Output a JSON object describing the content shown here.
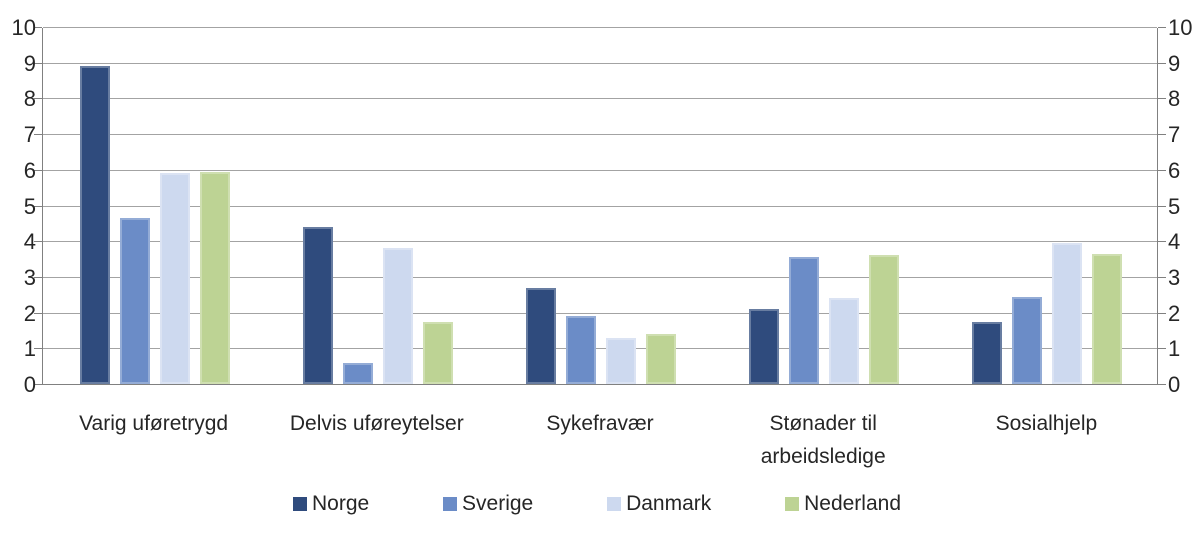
{
  "chart_data": {
    "type": "bar",
    "title": "",
    "categories": [
      "Varig uføretrygd",
      "Delvis uføreytelser",
      "Sykefravær",
      "Stønader til\narbeidsledige",
      "Sosialhjelp"
    ],
    "series": [
      {
        "name": "Norge",
        "color": "#2F4B7D",
        "values": [
          8.9,
          4.4,
          2.7,
          2.1,
          1.75
        ]
      },
      {
        "name": "Sverige",
        "color": "#6B8CC7",
        "values": [
          4.65,
          0.6,
          1.9,
          3.55,
          2.45
        ]
      },
      {
        "name": "Danmark",
        "color": "#CDD9EF",
        "values": [
          5.9,
          3.8,
          1.3,
          2.4,
          3.95
        ]
      },
      {
        "name": "Nederland",
        "color": "#BDD394",
        "values": [
          5.95,
          1.75,
          1.4,
          3.6,
          3.65
        ]
      }
    ],
    "xlabel": "",
    "ylabel": "",
    "ylim": [
      0,
      10
    ],
    "yticks": [
      0,
      1,
      2,
      3,
      4,
      5,
      6,
      7,
      8,
      9,
      10
    ],
    "grid": true,
    "dual_y_axis": true,
    "legend_position": "bottom",
    "colors": {
      "gridline": "#a3a3a3",
      "axis": "#808080",
      "text": "#262626",
      "background": "#ffffff"
    }
  }
}
